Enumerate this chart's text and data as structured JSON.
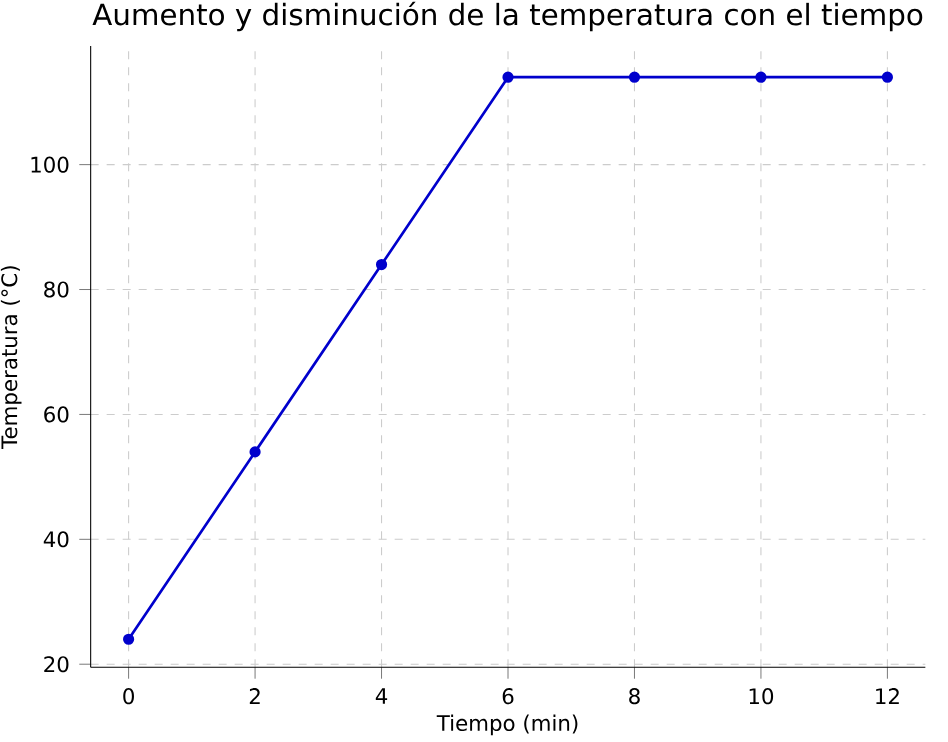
{
  "chart_data": {
    "type": "line",
    "title": "Aumento y disminución de la temperatura con el tiempo",
    "xlabel": "Tiempo (min)",
    "ylabel": "Temperatura (°C)",
    "x": [
      0,
      2,
      4,
      6,
      8,
      10,
      12
    ],
    "series": [
      {
        "color": "#0000cc",
        "values": [
          24,
          54,
          84,
          114,
          114,
          114,
          114
        ]
      }
    ],
    "xlim": [
      -0.6,
      12.6
    ],
    "ylim": [
      19.5,
      119
    ],
    "xticks": [
      0,
      2,
      4,
      6,
      8,
      10,
      12
    ],
    "yticks": [
      20,
      40,
      60,
      80,
      100
    ],
    "grid": true,
    "marker": "circle",
    "line_style": "solid"
  }
}
